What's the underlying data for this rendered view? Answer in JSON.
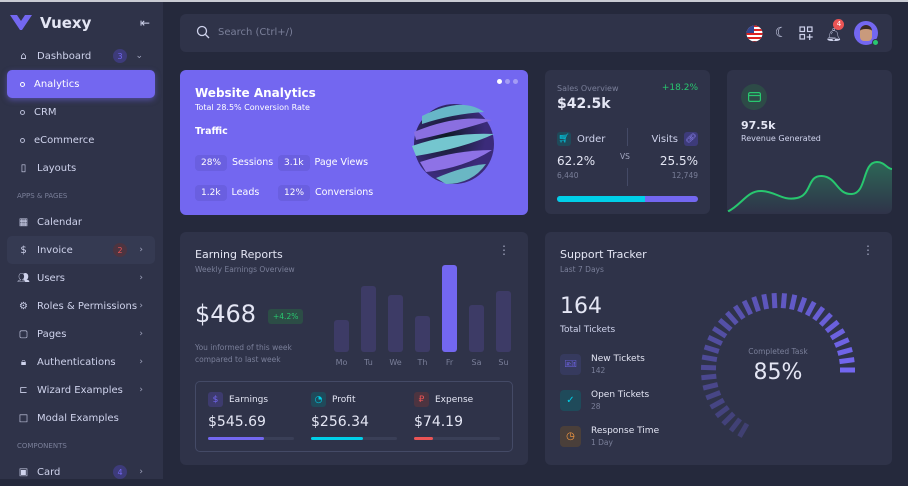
{
  "brand": {
    "name": "Vuexy"
  },
  "sidebar": {
    "items": [
      {
        "label": "Dashboard",
        "icon": "home-icon",
        "badge": "3",
        "chevron": "down"
      },
      {
        "label": "Analytics",
        "sub": true,
        "active": true
      },
      {
        "label": "CRM",
        "sub": true
      },
      {
        "label": "eCommerce",
        "sub": true
      },
      {
        "label": "Layouts",
        "icon": "layout-icon"
      }
    ],
    "section1": "APPS & PAGES",
    "apps": [
      {
        "label": "Calendar",
        "icon": "calendar-icon"
      },
      {
        "label": "Invoice",
        "icon": "invoice-icon",
        "badge": "2"
      },
      {
        "label": "Users",
        "icon": "users-icon"
      },
      {
        "label": "Roles & Permissions",
        "icon": "settings-icon"
      },
      {
        "label": "Pages",
        "icon": "file-icon"
      },
      {
        "label": "Authentications",
        "icon": "lock-icon"
      },
      {
        "label": "Wizard Examples",
        "icon": "wizard-icon"
      },
      {
        "label": "Modal Examples",
        "icon": "square-icon"
      }
    ],
    "section2": "COMPONENTS",
    "components": [
      {
        "label": "Card",
        "icon": "id-card-icon",
        "badge": "4"
      }
    ]
  },
  "header": {
    "search_placeholder": "Search (Ctrl+/)",
    "notifications": "4"
  },
  "website_analytics": {
    "title": "Website Analytics",
    "subtitle": "Total 28.5% Conversion Rate",
    "section": "Traffic",
    "stats": [
      {
        "value": "28%",
        "label": "Sessions"
      },
      {
        "value": "3.1k",
        "label": "Page Views"
      },
      {
        "value": "1.2k",
        "label": "Leads"
      },
      {
        "value": "12%",
        "label": "Conversions"
      }
    ]
  },
  "sales": {
    "title": "Sales Overview",
    "change": "+18.2%",
    "value": "$42.5k",
    "order_label": "Order",
    "order_pct": "62.2%",
    "order_count": "6,440",
    "vs": "VS",
    "visits_label": "Visits",
    "visits_pct": "25.5%",
    "visits_count": "12,749",
    "order_fraction": 0.622
  },
  "revenue": {
    "value": "97.5k",
    "label": "Revenue Generated",
    "color": "#28c76f"
  },
  "earning": {
    "title": "Earning Reports",
    "subtitle": "Weekly Earnings Overview",
    "value": "$468",
    "change": "+4.2%",
    "note1": "You informed of this week",
    "note2": "compared to last week",
    "chart_data": {
      "type": "bar",
      "categories": [
        "Mo",
        "Tu",
        "We",
        "Th",
        "Fr",
        "Sa",
        "Su"
      ],
      "values": [
        32,
        66,
        57,
        36,
        87,
        47,
        61
      ],
      "highlight": "Fr"
    },
    "items": [
      {
        "label": "Earnings",
        "value": "$545.69",
        "progress": 0.65,
        "color": "#7367f0"
      },
      {
        "label": "Profit",
        "value": "$256.34",
        "progress": 0.6,
        "color": "#00cfe8"
      },
      {
        "label": "Expense",
        "value": "$74.19",
        "progress": 0.22,
        "color": "#ea5455"
      }
    ]
  },
  "support": {
    "title": "Support Tracker",
    "subtitle": "Last 7 Days",
    "total": "164",
    "total_label": "Total Tickets",
    "items": [
      {
        "label": "New Tickets",
        "value": "142",
        "color": "#7367f0"
      },
      {
        "label": "Open Tickets",
        "value": "28",
        "color": "#00cfe8"
      },
      {
        "label": "Response Time",
        "value": "1 Day",
        "color": "#ff9f43"
      }
    ],
    "gauge_label": "Completed Task",
    "gauge_value": "85%",
    "gauge_fraction": 0.85
  }
}
